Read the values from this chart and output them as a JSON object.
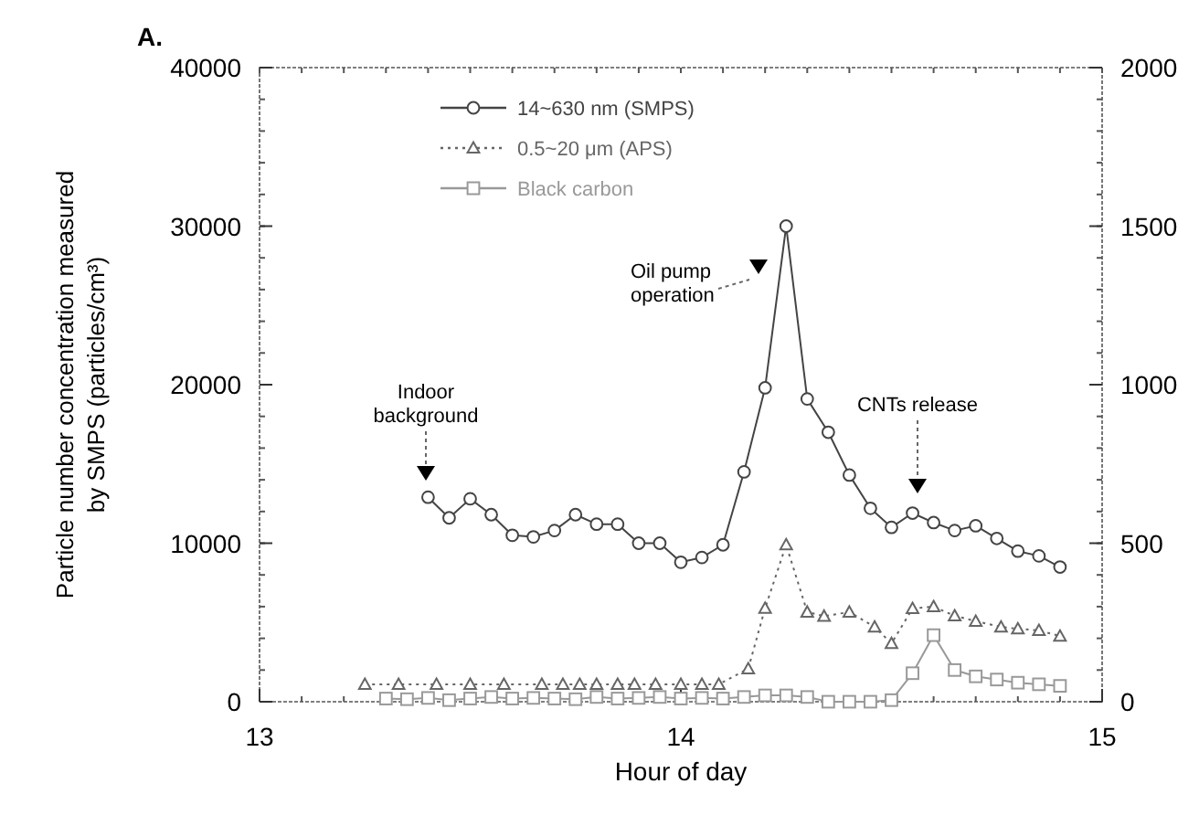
{
  "chart_data": {
    "type": "line",
    "title": "A.",
    "xlabel": "Hour of day",
    "ylabel": "Particle number concentration measured by SMPS (particles/cm³)",
    "xlim": [
      13,
      15
    ],
    "xticks": [
      13,
      14,
      15
    ],
    "ylim": [
      0,
      40000
    ],
    "yticks": [
      0,
      10000,
      20000,
      30000,
      40000
    ],
    "y2lim": [
      0,
      2000
    ],
    "y2ticks": [
      0,
      500,
      1000,
      1500,
      2000
    ],
    "legend": "top left",
    "grid": false,
    "series": [
      {
        "name": "14~630 nm (SMPS)",
        "color": "#444444",
        "marker": "circle",
        "line_style": "solid",
        "x": [
          13.4,
          13.45,
          13.5,
          13.55,
          13.6,
          13.65,
          13.7,
          13.75,
          13.8,
          13.85,
          13.9,
          13.95,
          14.0,
          14.05,
          14.1,
          14.15,
          14.2,
          14.25,
          14.3,
          14.35,
          14.4,
          14.45,
          14.5,
          14.55,
          14.6,
          14.65,
          14.7,
          14.75,
          14.8,
          14.85,
          14.9
        ],
        "values": [
          12900,
          11600,
          12800,
          11800,
          10500,
          10400,
          10800,
          11800,
          11200,
          11200,
          10000,
          10000,
          8800,
          9100,
          9900,
          14500,
          19800,
          30000,
          19100,
          17000,
          14300,
          12200,
          11000,
          11900,
          11300,
          10800,
          11100,
          10300,
          9500,
          9200,
          8500
        ]
      },
      {
        "name": "0.5~20 μm (APS)",
        "color": "#666666",
        "marker": "triangle",
        "line_style": "dotted",
        "axis": "y2",
        "x": [
          13.25,
          13.33,
          13.42,
          13.5,
          13.58,
          13.67,
          13.72,
          13.76,
          13.8,
          13.85,
          13.89,
          13.94,
          14.0,
          14.05,
          14.09,
          14.16,
          14.2,
          14.25,
          14.3,
          14.34,
          14.4,
          14.46,
          14.5,
          14.55,
          14.6,
          14.65,
          14.7,
          14.76,
          14.8,
          14.85,
          14.9
        ],
        "values": [
          55,
          55,
          55,
          55,
          55,
          55,
          55,
          55,
          55,
          55,
          55,
          55,
          55,
          55,
          55,
          104,
          295,
          495,
          283,
          270,
          283,
          236,
          184,
          294,
          300,
          271,
          254,
          236,
          230,
          225,
          207
        ]
      },
      {
        "name": "Black carbon",
        "color": "#999999",
        "marker": "square",
        "line_style": "solid",
        "axis": "y2",
        "x": [
          13.3,
          13.35,
          13.4,
          13.45,
          13.5,
          13.55,
          13.6,
          13.65,
          13.7,
          13.75,
          13.8,
          13.85,
          13.9,
          13.95,
          14.0,
          14.05,
          14.1,
          14.15,
          14.2,
          14.25,
          14.3,
          14.35,
          14.4,
          14.45,
          14.5,
          14.55,
          14.6,
          14.65,
          14.7,
          14.75,
          14.8,
          14.85,
          14.9
        ],
        "values": [
          10,
          8,
          12,
          5,
          10,
          15,
          10,
          12,
          10,
          8,
          15,
          10,
          12,
          15,
          10,
          12,
          10,
          15,
          20,
          20,
          15,
          0,
          0,
          0,
          5,
          90,
          210,
          100,
          80,
          70,
          60,
          55,
          50
        ]
      }
    ],
    "annotations": [
      "Indoor background",
      "Oil pump operation",
      "CNTs release"
    ]
  }
}
